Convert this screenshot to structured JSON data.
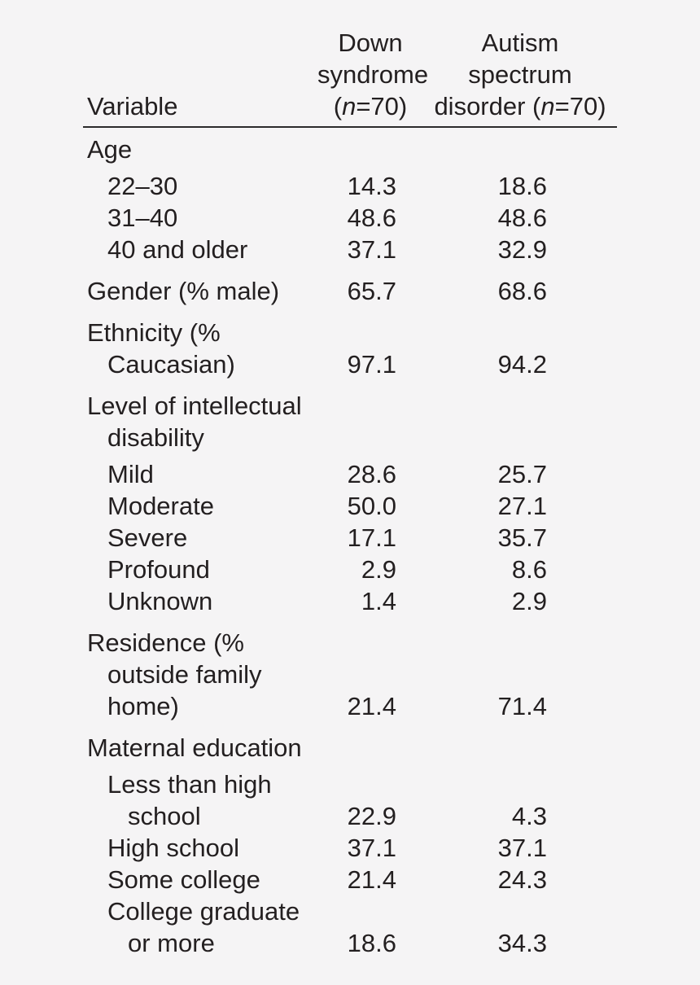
{
  "page": {
    "background": "#f5f4f5",
    "text_color": "#231f20",
    "rule_color": "#2b2b2b"
  },
  "table": {
    "header": {
      "variable_label": "Variable",
      "col1": {
        "line1": "Down",
        "line2": "syndrome",
        "n_pre": "(",
        "n_char": "n",
        "n_post": "=70)"
      },
      "col2": {
        "line1": "Autism",
        "line2": "spectrum",
        "n_pre": "disorder (",
        "n_char": "n",
        "n_post": "=70)"
      }
    },
    "rows": [
      {
        "lines": [
          "Age"
        ],
        "indent": 0,
        "values": null
      },
      {
        "lines": [
          "22–30"
        ],
        "indent": 1,
        "values": [
          "14.3",
          "18.6"
        ]
      },
      {
        "lines": [
          "31–40"
        ],
        "indent": 1,
        "values": [
          "48.6",
          "48.6"
        ]
      },
      {
        "lines": [
          "40 and older"
        ],
        "indent": 1,
        "values": [
          "37.1",
          "32.9"
        ]
      },
      {
        "lines": [
          "Gender (% male)"
        ],
        "indent": 0,
        "values": [
          "65.7",
          "68.6"
        ]
      },
      {
        "lines": [
          "Ethnicity (%",
          "Caucasian)"
        ],
        "indent": 0,
        "values": [
          "97.1",
          "94.2"
        ]
      },
      {
        "lines": [
          "Level of intellectual",
          "disability"
        ],
        "indent": 0,
        "values": null
      },
      {
        "lines": [
          "Mild"
        ],
        "indent": 1,
        "values": [
          "28.6",
          "25.7"
        ]
      },
      {
        "lines": [
          "Moderate"
        ],
        "indent": 1,
        "values": [
          "50.0",
          "27.1"
        ]
      },
      {
        "lines": [
          "Severe"
        ],
        "indent": 1,
        "values": [
          "17.1",
          "35.7"
        ]
      },
      {
        "lines": [
          "Profound"
        ],
        "indent": 1,
        "values": [
          "2.9",
          "8.6"
        ]
      },
      {
        "lines": [
          "Unknown"
        ],
        "indent": 1,
        "values": [
          "1.4",
          "2.9"
        ]
      },
      {
        "lines": [
          "Residence (%",
          "outside family",
          "home)"
        ],
        "indent": 0,
        "values": [
          "21.4",
          "71.4"
        ]
      },
      {
        "lines": [
          "Maternal education"
        ],
        "indent": 0,
        "values": null
      },
      {
        "lines": [
          "Less than high",
          "school"
        ],
        "indent": 1,
        "values": [
          "22.9",
          "4.3"
        ]
      },
      {
        "lines": [
          "High school"
        ],
        "indent": 1,
        "values": [
          "37.1",
          "37.1"
        ]
      },
      {
        "lines": [
          "Some college"
        ],
        "indent": 1,
        "values": [
          "21.4",
          "24.3"
        ]
      },
      {
        "lines": [
          "College graduate",
          "or more"
        ],
        "indent": 1,
        "values": [
          "18.6",
          "34.3"
        ]
      }
    ],
    "chart_data": {
      "type": "table",
      "title": "",
      "columns": [
        "Variable",
        "Down syndrome (n=70)",
        "Autism spectrum disorder (n=70)"
      ],
      "series": [
        {
          "name": "Down syndrome (n=70)",
          "values": [
            14.3,
            48.6,
            37.1,
            65.7,
            97.1,
            28.6,
            50.0,
            17.1,
            2.9,
            1.4,
            21.4,
            22.9,
            37.1,
            21.4,
            18.6
          ]
        },
        {
          "name": "Autism spectrum disorder (n=70)",
          "values": [
            18.6,
            48.6,
            32.9,
            68.6,
            94.2,
            25.7,
            27.1,
            35.7,
            8.6,
            2.9,
            71.4,
            4.3,
            37.1,
            24.3,
            34.3
          ]
        }
      ],
      "categories": [
        "Age 22–30",
        "Age 31–40",
        "Age 40 and older",
        "Gender (% male)",
        "Ethnicity (% Caucasian)",
        "ID Mild",
        "ID Moderate",
        "ID Severe",
        "ID Profound",
        "ID Unknown",
        "Residence (% outside family home)",
        "Maternal education: Less than high school",
        "Maternal education: High school",
        "Maternal education: Some college",
        "Maternal education: College graduate or more"
      ]
    }
  }
}
